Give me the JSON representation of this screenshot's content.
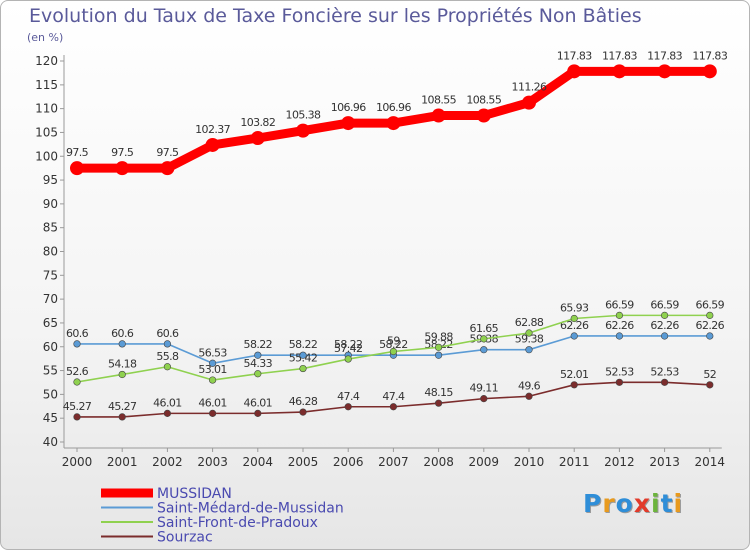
{
  "title": "Evolution du Taux de Taxe Foncière sur les Propriétés Non Bâties",
  "subtitle": "(en %)",
  "logo": {
    "text": "Proxiti",
    "colors": [
      "#2f8ed8",
      "#e89a1e",
      "#2f8ed8",
      "#e23a2a",
      "#6cb43c",
      "#2f8ed8",
      "#e89a1e"
    ]
  },
  "chart_data": {
    "type": "line",
    "title": "Evolution du Taux de Taxe Foncière sur les Propriétés Non Bâties",
    "ylabel": "(en %)",
    "xlabel": "",
    "ylim": [
      40,
      120
    ],
    "y_ticks": [
      "40",
      "45",
      "50",
      "55",
      "60",
      "65",
      "70",
      "75",
      "80",
      "85",
      "90",
      "95",
      "100",
      "105",
      "110",
      "115",
      "120"
    ],
    "x": [
      "2000",
      "2001",
      "2002",
      "2003",
      "2004",
      "2005",
      "2006",
      "2007",
      "2008",
      "2009",
      "2010",
      "2011",
      "2012",
      "2013",
      "2014"
    ],
    "grid": false,
    "legend_position": "bottom-left",
    "series": [
      {
        "name": "MUSSIDAN",
        "color": "#ff0000",
        "values": [
          97.5,
          97.5,
          97.5,
          102.37,
          103.82,
          105.38,
          106.96,
          106.96,
          108.55,
          108.55,
          111.26,
          117.83,
          117.83,
          117.83,
          117.83
        ],
        "labels": [
          "97.5",
          "97.5",
          "97.5",
          "102.37",
          "103.82",
          "105.38",
          "106.96",
          "106.96",
          "108.55",
          "108.55",
          "111.26",
          "117.83",
          "117.83",
          "117.83",
          "117.83"
        ]
      },
      {
        "name": "Saint-Médard-de-Mussidan",
        "color": "#5b9bd5",
        "values": [
          60.6,
          60.6,
          60.6,
          56.53,
          58.22,
          58.22,
          58.22,
          58.22,
          58.22,
          59.38,
          59.38,
          62.26,
          62.26,
          62.26,
          62.26
        ],
        "labels": [
          "60.6",
          "60.6",
          "60.6",
          "56.53",
          "58.22",
          "58.22",
          "58.22",
          "58.22",
          "58.22",
          "59.38",
          "59.38",
          "62.26",
          "62.26",
          "62.26",
          "62.26"
        ]
      },
      {
        "name": "Saint-Front-de-Pradoux",
        "color": "#8fd14f",
        "values": [
          52.6,
          54.18,
          55.8,
          53.01,
          54.33,
          55.42,
          57.42,
          59,
          59.88,
          61.65,
          62.88,
          65.93,
          66.59,
          66.59,
          66.59
        ],
        "labels": [
          "52.6",
          "54.18",
          "55.8",
          "53.01",
          "54.33",
          "55.42",
          "57.42",
          "59",
          "59.88",
          "61.65",
          "62.88",
          "65.93",
          "66.59",
          "66.59",
          "66.59"
        ]
      },
      {
        "name": "Sourzac",
        "color": "#7b2c2c",
        "values": [
          45.27,
          45.27,
          46.01,
          46.01,
          46.01,
          46.28,
          47.4,
          47.4,
          48.15,
          49.11,
          49.6,
          52.01,
          52.53,
          52.53,
          52
        ],
        "labels": [
          "45.27",
          "45.27",
          "46.01",
          "46.01",
          "46.01",
          "46.28",
          "47.4",
          "47.4",
          "48.15",
          "49.11",
          "49.6",
          "52.01",
          "52.53",
          "52.53",
          "52"
        ]
      }
    ]
  }
}
